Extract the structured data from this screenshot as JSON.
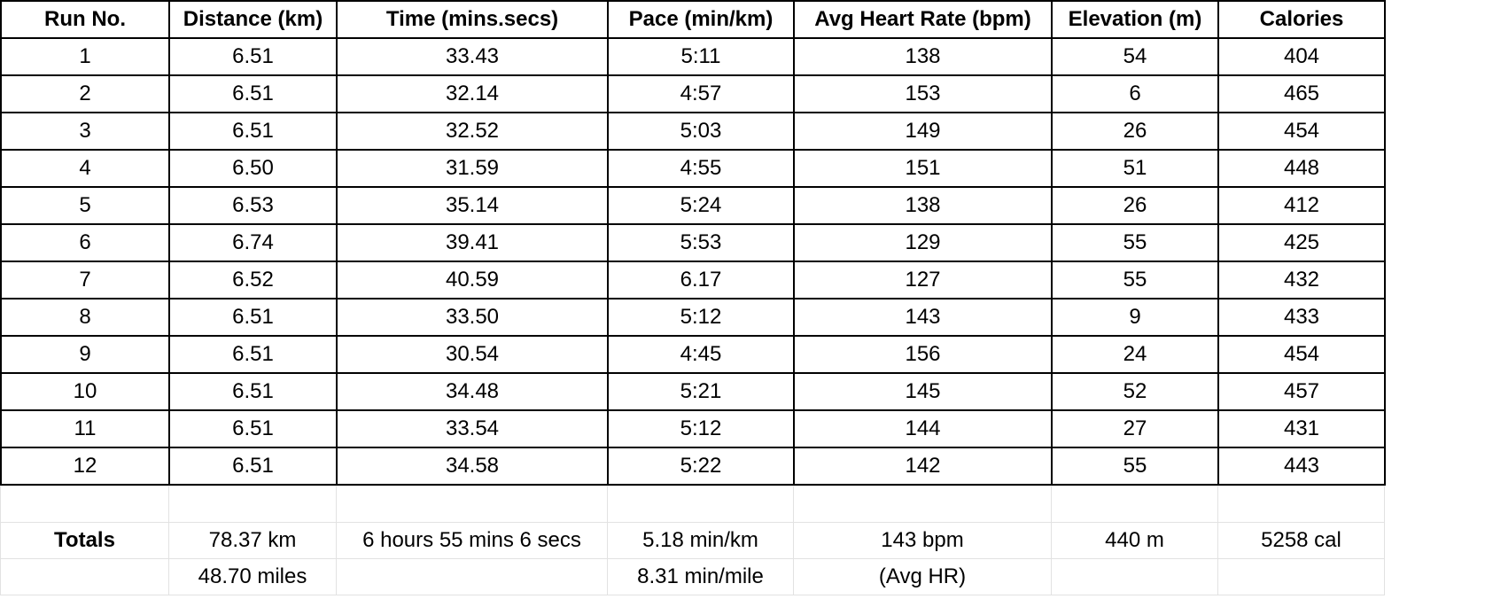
{
  "table": {
    "headers": [
      "Run No.",
      "Distance (km)",
      "Time (mins.secs)",
      "Pace (min/km)",
      "Avg Heart Rate (bpm)",
      "Elevation (m)",
      "Calories"
    ],
    "rows": [
      [
        "1",
        "6.51",
        "33.43",
        "5:11",
        "138",
        "54",
        "404"
      ],
      [
        "2",
        "6.51",
        "32.14",
        "4:57",
        "153",
        "6",
        "465"
      ],
      [
        "3",
        "6.51",
        "32.52",
        "5:03",
        "149",
        "26",
        "454"
      ],
      [
        "4",
        "6.50",
        "31.59",
        "4:55",
        "151",
        "51",
        "448"
      ],
      [
        "5",
        "6.53",
        "35.14",
        "5:24",
        "138",
        "26",
        "412"
      ],
      [
        "6",
        "6.74",
        "39.41",
        "5:53",
        "129",
        "55",
        "425"
      ],
      [
        "7",
        "6.52",
        "40.59",
        "6.17",
        "127",
        "55",
        "432"
      ],
      [
        "8",
        "6.51",
        "33.50",
        "5:12",
        "143",
        "9",
        "433"
      ],
      [
        "9",
        "6.51",
        "30.54",
        "4:45",
        "156",
        "24",
        "454"
      ],
      [
        "10",
        "6.51",
        "34.48",
        "5:21",
        "145",
        "52",
        "457"
      ],
      [
        "11",
        "6.51",
        "33.54",
        "5:12",
        "144",
        "27",
        "431"
      ],
      [
        "12",
        "6.51",
        "34.58",
        "5:22",
        "142",
        "55",
        "443"
      ]
    ]
  },
  "summary": {
    "totals_label": "Totals",
    "distance_km": "78.37 km",
    "distance_miles": "48.70 miles",
    "time_total": "6 hours 55 mins 6 secs",
    "pace_km": "5.18 min/km",
    "pace_mile": "8.31 min/mile",
    "avg_hr": "143 bpm",
    "avg_hr_note": "(Avg HR)",
    "elevation": "440 m",
    "calories": "5258 cal"
  }
}
